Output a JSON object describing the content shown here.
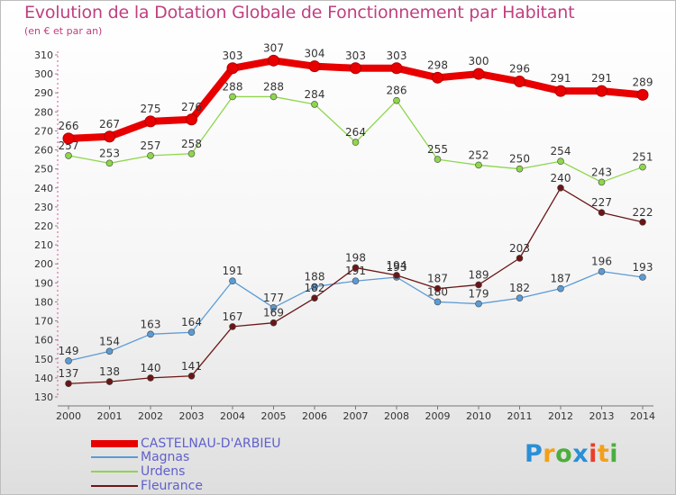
{
  "title": "Evolution de la Dotation Globale de Fonctionnement par Habitant",
  "subtitle": "(en € et par an)",
  "logo_text": "Proxiti",
  "chart_data": {
    "type": "line",
    "x": [
      "2000",
      "2001",
      "2002",
      "2003",
      "2004",
      "2005",
      "2006",
      "2007",
      "2008",
      "2009",
      "2010",
      "2011",
      "2012",
      "2013",
      "2014"
    ],
    "ylim": [
      130,
      310
    ],
    "yticks": [
      130,
      140,
      150,
      160,
      170,
      180,
      190,
      200,
      210,
      220,
      230,
      240,
      250,
      260,
      270,
      280,
      290,
      300,
      310
    ],
    "grid": false,
    "legend_position": "bottom-left",
    "series": [
      {
        "name": "CASTELNAU-D'ARBIEU",
        "color": "#e80000",
        "values": [
          266,
          267,
          275,
          276,
          303,
          307,
          304,
          303,
          303,
          298,
          300,
          296,
          291,
          291,
          289
        ]
      },
      {
        "name": "Magnas",
        "color": "#5b9bd5",
        "values": [
          149,
          154,
          163,
          164,
          191,
          177,
          188,
          191,
          193,
          180,
          179,
          182,
          187,
          196,
          193
        ]
      },
      {
        "name": "Urdens",
        "color": "#8ed64c",
        "values": [
          257,
          253,
          257,
          258,
          288,
          288,
          284,
          264,
          286,
          255,
          252,
          250,
          254,
          243,
          251
        ]
      },
      {
        "name": "Fleurance",
        "color": "#6b1616",
        "values": [
          137,
          138,
          140,
          141,
          167,
          169,
          182,
          198,
          194,
          187,
          189,
          203,
          240,
          227,
          222
        ]
      }
    ]
  }
}
